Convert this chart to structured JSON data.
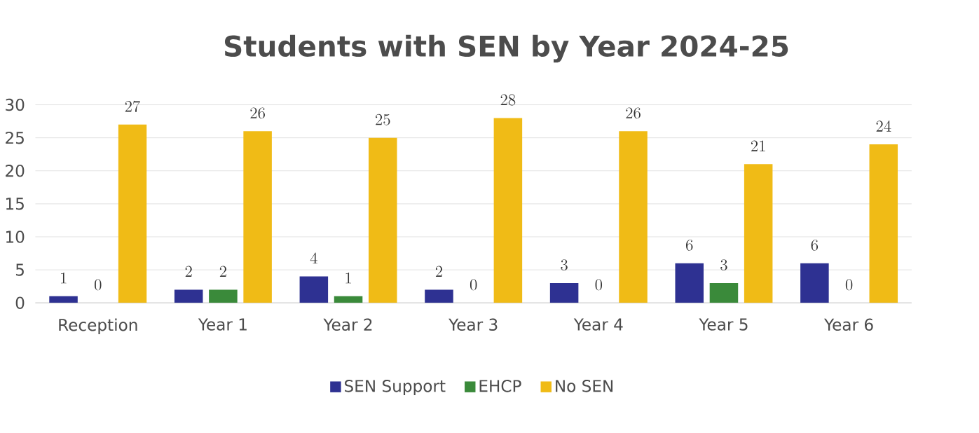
{
  "chart_data": {
    "type": "bar",
    "title": "Students with SEN by Year 2024-25",
    "categories": [
      "Reception",
      "Year 1",
      "Year 2",
      "Year 3",
      "Year 4",
      "Year 5",
      "Year 6"
    ],
    "series": [
      {
        "name": "SEN Support",
        "color": "#2e3192",
        "values": [
          1,
          2,
          4,
          2,
          3,
          6,
          6
        ]
      },
      {
        "name": "EHCP",
        "color": "#3a8a3a",
        "values": [
          0,
          2,
          1,
          0,
          0,
          3,
          0
        ]
      },
      {
        "name": "No SEN",
        "color": "#f0bb16",
        "values": [
          27,
          26,
          25,
          28,
          26,
          21,
          24
        ]
      }
    ],
    "ylim": [
      0,
      30
    ],
    "yticks": [
      0,
      5,
      10,
      15,
      20,
      25,
      30
    ],
    "grid": "y",
    "legend": "bottom",
    "data_labels": true
  }
}
